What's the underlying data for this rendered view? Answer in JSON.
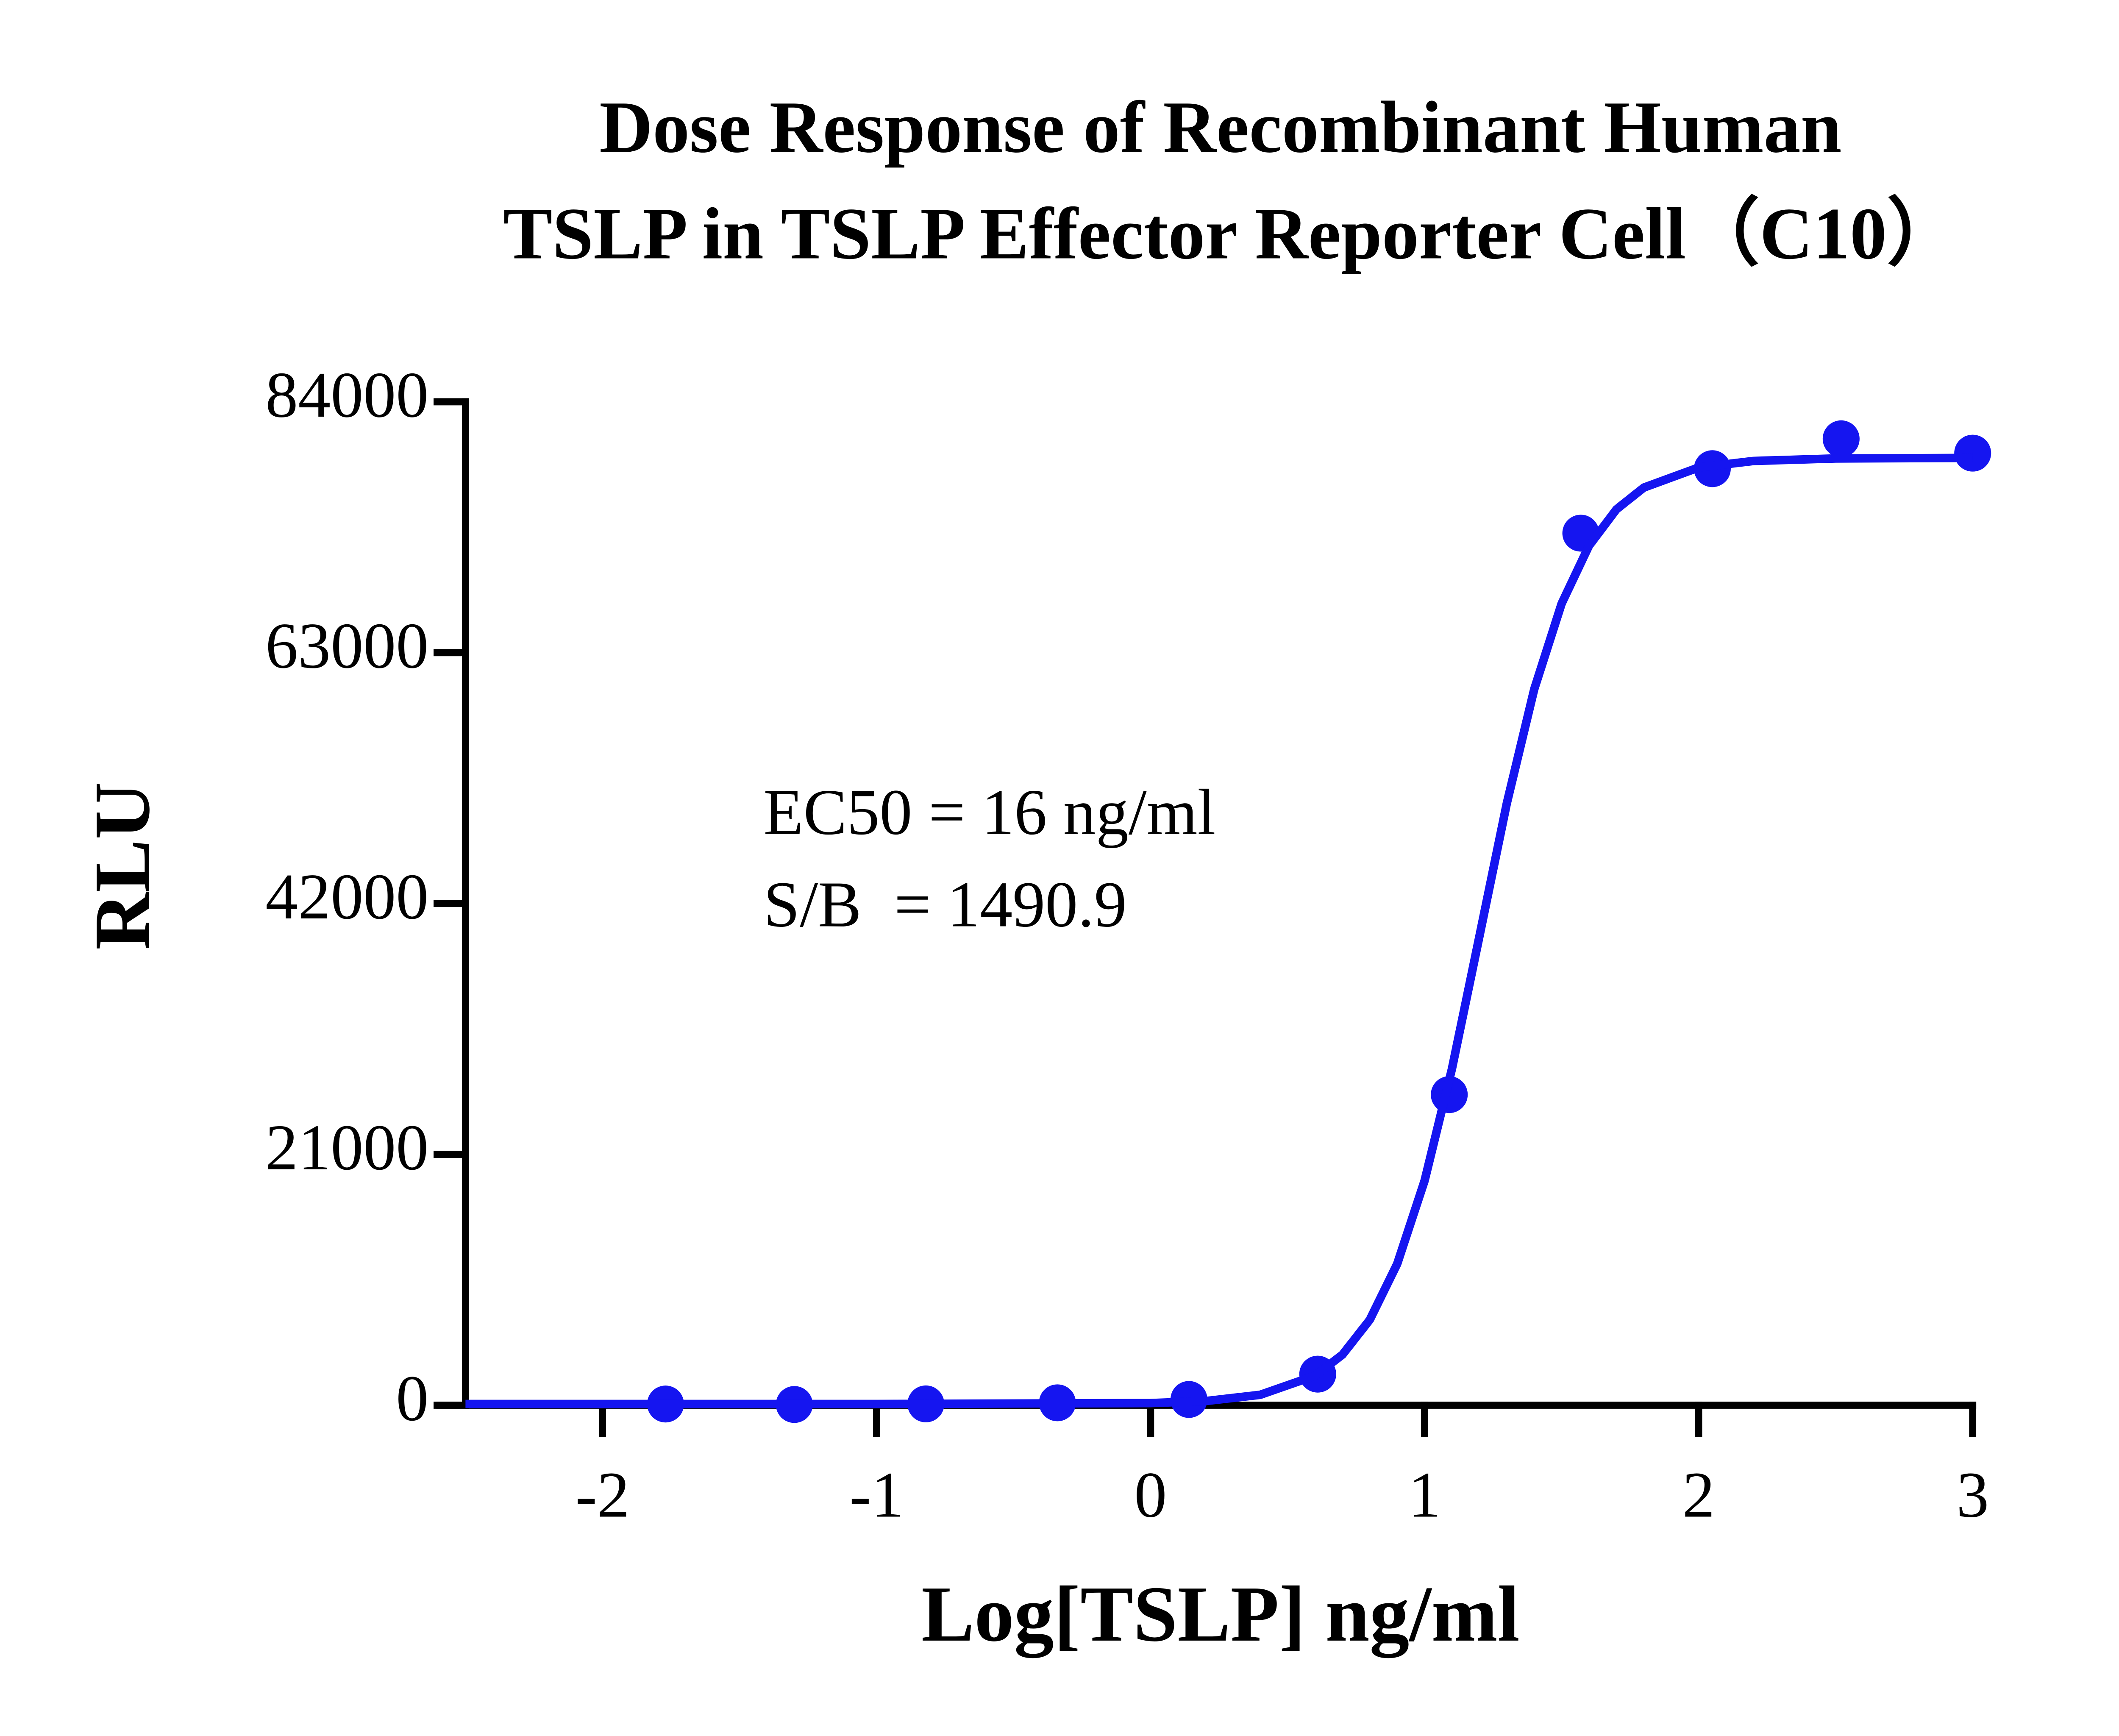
{
  "chart_data": {
    "type": "scatter",
    "title": [
      "Dose Response of Recombinant Human",
      "TSLP in TSLP Effector Reporter Cell（C10）"
    ],
    "x_label": "Log[TSLP] ng/ml",
    "y_label": "RLU",
    "annotations": [
      "EC50 = 16 ng/ml",
      "S/B  = 1490.9"
    ],
    "xlim": [
      -2.5,
      3
    ],
    "ylim": [
      0,
      84000
    ],
    "xticks": [
      -2,
      -1,
      0,
      1,
      2,
      3
    ],
    "yticks": [
      0,
      21000,
      42000,
      63000,
      84000
    ],
    "series": [
      {
        "kind": "points",
        "color": "#1515f0",
        "x": [
          -1.77,
          -1.3,
          -0.82,
          -0.34,
          0.14,
          0.61,
          1.09,
          1.57,
          2.05,
          2.52,
          3.0
        ],
        "values": [
          100,
          60,
          110,
          200,
          480,
          2600,
          26000,
          73000,
          78400,
          80900,
          79700
        ]
      },
      {
        "kind": "line",
        "color": "#1515f0",
        "x": [
          -2.5,
          -1.0,
          0.0,
          0.2,
          0.4,
          0.6,
          0.7,
          0.8,
          0.9,
          1.0,
          1.1,
          1.2,
          1.3,
          1.4,
          1.5,
          1.6,
          1.7,
          1.8,
          2.0,
          2.2,
          2.5,
          3.0
        ],
        "values": [
          100,
          100,
          177,
          344,
          870,
          2471,
          4225,
          7152,
          11830,
          18797,
          28185,
          39250,
          50386,
          59936,
          67105,
          71950,
          74993,
          76815,
          78498,
          79044,
          79254,
          79300
        ]
      }
    ]
  }
}
